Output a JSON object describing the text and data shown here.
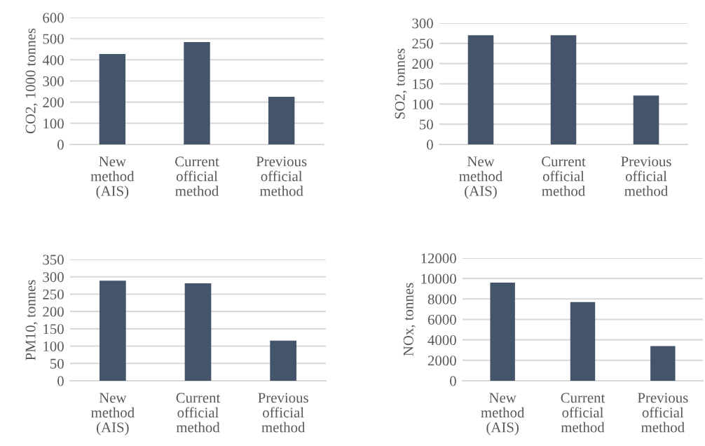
{
  "chart_data": [
    {
      "type": "bar",
      "ylabel": "CO2, 1000 tonnes",
      "categories": [
        "New\nmethod\n(AIS)",
        "Current\nofficial\nmethod",
        "Previous\nofficial\nmethod"
      ],
      "values": [
        428,
        484,
        225
      ],
      "color": "#44546a",
      "ylim": [
        0,
        600
      ],
      "yticks": [
        0,
        100,
        200,
        300,
        400,
        500,
        600
      ],
      "grid": "y"
    },
    {
      "type": "bar",
      "ylabel": "SO2, tonnes",
      "categories": [
        "New\nmethod\n(AIS)",
        "Current\nofficial\nmethod",
        "Previous\nofficial\nmethod"
      ],
      "values": [
        270,
        270,
        121
      ],
      "color": "#44546a",
      "ylim": [
        0,
        300
      ],
      "yticks": [
        0,
        50,
        100,
        150,
        200,
        250,
        300
      ],
      "grid": "y"
    },
    {
      "type": "bar",
      "ylabel": "PM10, tonnes",
      "categories": [
        "New\nmethod\n(AIS)",
        "Current\nofficial\nmethod",
        "Previous\nofficial\nmethod"
      ],
      "values": [
        289,
        281,
        116
      ],
      "color": "#44546a",
      "ylim": [
        0,
        350
      ],
      "yticks": [
        0,
        50,
        100,
        150,
        200,
        250,
        300,
        350
      ],
      "grid": "y"
    },
    {
      "type": "bar",
      "ylabel": "NOx, tonnes",
      "categories": [
        "New\nmethod\n(AIS)",
        "Current\nofficial\nmethod",
        "Previous\nofficial\nmethod"
      ],
      "values": [
        9600,
        7700,
        3400
      ],
      "color": "#44546a",
      "ylim": [
        0,
        12000
      ],
      "yticks": [
        0,
        2000,
        4000,
        6000,
        8000,
        10000,
        12000
      ],
      "grid": "y"
    }
  ]
}
